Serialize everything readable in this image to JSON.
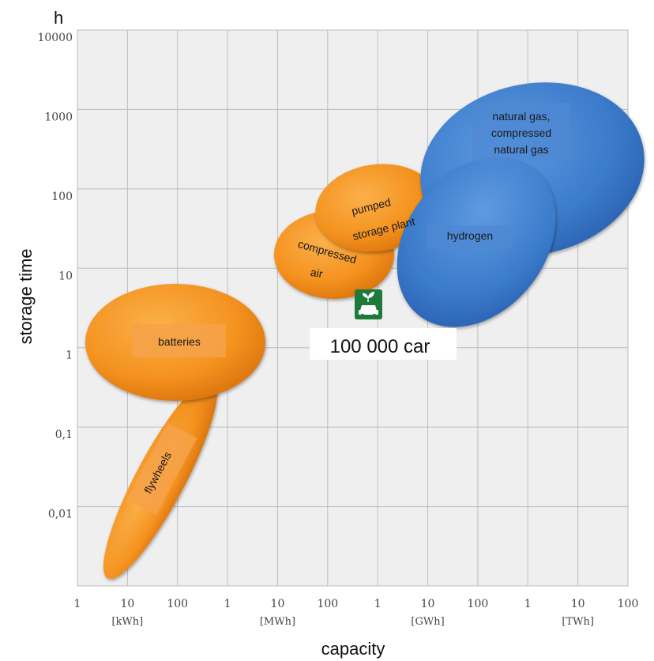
{
  "chart_data": {
    "type": "scatter",
    "title": "",
    "xlabel": "capacity",
    "ylabel": "storage time",
    "y_unit": "h",
    "x_scale": "log",
    "y_scale": "log",
    "xlim": [
      "1 kWh",
      "100 TWh"
    ],
    "ylim": [
      "0.001 h",
      "10000 h"
    ],
    "grid": true,
    "x_tick_labels": [
      "1",
      "10",
      "100",
      "1",
      "10",
      "100",
      "1",
      "10",
      "100",
      "1",
      "10",
      "100"
    ],
    "x_unit_labels": [
      "[kWh]",
      "[MWh]",
      "[GWh]",
      "[TWh]"
    ],
    "y_tick_labels": [
      "10000",
      "1000",
      "100",
      "10",
      "1",
      "0,1",
      "0,01"
    ],
    "regions": [
      {
        "name": "flywheels",
        "color": "#f28c1e"
      },
      {
        "name": "batteries",
        "color": "#f28c1e"
      },
      {
        "name": "compressed air",
        "label_lines": [
          "compressed",
          "air"
        ],
        "color": "#f28c1e"
      },
      {
        "name": "pumped storage plant",
        "label_lines": [
          "pumped",
          "storage  plant"
        ],
        "color": "#f28c1e"
      },
      {
        "name": "natural gas, compressed natural gas",
        "label_lines": [
          "natural gas,",
          "compressed",
          "natural gas"
        ],
        "color": "#3d7dcc"
      },
      {
        "name": "hydrogen",
        "color": "#3d7dcc"
      }
    ],
    "annotation": {
      "text": "100 000 car",
      "icon": "car-icon",
      "icon_color": "#1e7a3c"
    }
  }
}
